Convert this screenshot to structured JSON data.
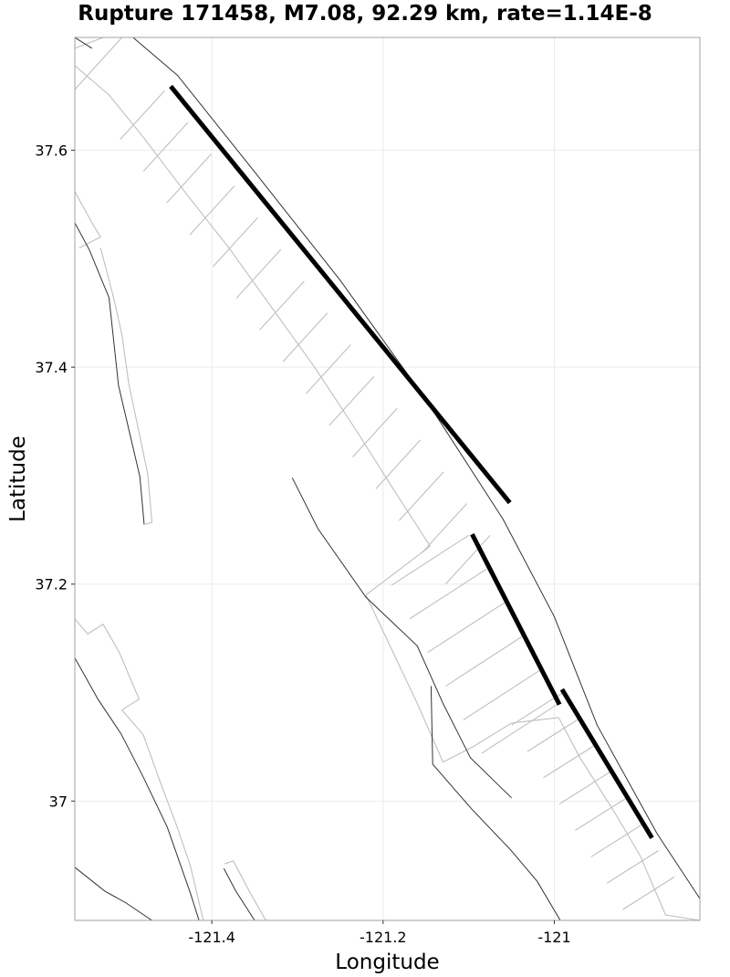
{
  "title": "Rupture 171458, M7.08, 92.29 km, rate=1.14E-8",
  "chart_data": {
    "type": "map",
    "xlabel": "Longitude",
    "ylabel": "Latitude",
    "xlim": [
      -121.56,
      -120.83
    ],
    "ylim": [
      36.89,
      37.704
    ],
    "x_ticks": [
      {
        "value": -121.4,
        "label": "-121.4"
      },
      {
        "value": -121.2,
        "label": "-121.2"
      },
      {
        "value": -121.0,
        "label": "-121"
      }
    ],
    "y_ticks": [
      {
        "value": 37.6,
        "label": "37.6"
      },
      {
        "value": 37.4,
        "label": "37.4"
      },
      {
        "value": 37.2,
        "label": "37.2"
      },
      {
        "value": 37.0,
        "label": "37"
      }
    ],
    "grid": true,
    "colors": {
      "rupture": "#000000",
      "fault_trace": "#333333",
      "fault_outline": "#bfbfbf",
      "grid": "#ebebeb"
    },
    "rupture_segments": [
      [
        [
          -121.448,
          37.659
        ],
        [
          -121.052,
          37.275
        ]
      ],
      [
        [
          -121.096,
          37.246
        ],
        [
          -120.994,
          37.089
        ]
      ],
      [
        [
          -120.991,
          37.103
        ],
        [
          -120.886,
          36.966
        ]
      ]
    ],
    "fault_traces": [
      [
        [
          -121.56,
          37.533
        ],
        [
          -121.543,
          37.508
        ],
        [
          -121.52,
          37.464
        ],
        [
          -121.509,
          37.383
        ],
        [
          -121.484,
          37.299
        ],
        [
          -121.479,
          37.255
        ]
      ],
      [
        [
          -121.306,
          37.298
        ],
        [
          -121.276,
          37.251
        ],
        [
          -121.22,
          37.188
        ],
        [
          -121.16,
          37.143
        ],
        [
          -121.13,
          37.09
        ],
        [
          -121.098,
          37.04
        ],
        [
          -121.05,
          37.003
        ]
      ],
      [
        [
          -121.144,
          37.106
        ],
        [
          -121.142,
          37.034
        ],
        [
          -121.097,
          36.993
        ],
        [
          -121.051,
          36.955
        ],
        [
          -121.02,
          36.926
        ],
        [
          -120.993,
          36.89
        ]
      ],
      [
        [
          -121.56,
          37.132
        ],
        [
          -121.533,
          37.094
        ],
        [
          -121.506,
          37.062
        ],
        [
          -121.48,
          37.022
        ],
        [
          -121.452,
          36.976
        ],
        [
          -121.425,
          36.915
        ],
        [
          -121.415,
          36.89
        ]
      ],
      [
        [
          -121.56,
          36.939
        ],
        [
          -121.525,
          36.917
        ],
        [
          -121.5,
          36.906
        ],
        [
          -121.47,
          36.89
        ]
      ],
      [
        [
          -121.386,
          36.938
        ],
        [
          -121.372,
          36.917
        ],
        [
          -121.35,
          36.89
        ]
      ],
      [
        [
          -121.492,
          37.704
        ],
        [
          -121.44,
          37.669
        ],
        [
          -121.35,
          37.58
        ],
        [
          -121.25,
          37.48
        ],
        [
          -121.15,
          37.37
        ],
        [
          -121.06,
          37.26
        ],
        [
          -121.0,
          37.17
        ],
        [
          -120.95,
          37.07
        ],
        [
          -120.88,
          36.97
        ],
        [
          -120.83,
          36.91
        ]
      ],
      [
        [
          -121.56,
          37.704
        ],
        [
          -121.54,
          37.694
        ]
      ]
    ],
    "fault_outlines": [
      [
        [
          -121.56,
          37.678
        ],
        [
          -121.52,
          37.651
        ],
        [
          -121.48,
          37.612
        ],
        [
          -121.43,
          37.56
        ],
        [
          -121.38,
          37.51
        ],
        [
          -121.33,
          37.455
        ],
        [
          -121.28,
          37.4
        ],
        [
          -121.23,
          37.34
        ],
        [
          -121.19,
          37.29
        ],
        [
          -121.145,
          37.235
        ]
      ],
      [
        [
          -121.56,
          37.694
        ],
        [
          -121.52,
          37.706
        ]
      ],
      [
        [
          -121.52,
          37.706
        ],
        [
          -121.4,
          37.704
        ]
      ],
      [
        [
          -121.56,
          37.656
        ],
        [
          -121.505,
          37.704
        ]
      ],
      [
        [
          -121.145,
          37.235
        ],
        [
          -121.22,
          37.19
        ]
      ],
      [
        [
          -121.22,
          37.19
        ],
        [
          -121.16,
          37.09
        ],
        [
          -121.13,
          37.036
        ],
        [
          -121.095,
          37.05
        ],
        [
          -121.05,
          37.072
        ]
      ],
      [
        [
          -120.995,
          37.077
        ],
        [
          -121.05,
          37.072
        ]
      ],
      [
        [
          -120.995,
          37.077
        ],
        [
          -120.97,
          37.04
        ],
        [
          -120.93,
          36.99
        ],
        [
          -120.9,
          36.95
        ],
        [
          -120.87,
          36.895
        ]
      ],
      [
        [
          -120.83,
          36.89
        ],
        [
          -120.87,
          36.895
        ]
      ],
      [
        [
          -121.56,
          37.562
        ],
        [
          -121.54,
          37.533
        ],
        [
          -121.53,
          37.52
        ],
        [
          -121.555,
          37.51
        ]
      ],
      [
        [
          -121.53,
          37.51
        ],
        [
          -121.515,
          37.465
        ],
        [
          -121.505,
          37.43
        ],
        [
          -121.497,
          37.385
        ],
        [
          -121.475,
          37.302
        ],
        [
          -121.47,
          37.257
        ],
        [
          -121.478,
          37.255
        ]
      ],
      [
        [
          -121.56,
          37.168
        ],
        [
          -121.545,
          37.154
        ],
        [
          -121.527,
          37.163
        ],
        [
          -121.508,
          37.137
        ],
        [
          -121.485,
          37.094
        ],
        [
          -121.505,
          37.084
        ],
        [
          -121.48,
          37.061
        ],
        [
          -121.46,
          37.017
        ],
        [
          -121.44,
          36.975
        ],
        [
          -121.425,
          36.94
        ],
        [
          -121.41,
          36.89
        ]
      ],
      [
        [
          -121.385,
          36.942
        ],
        [
          -121.375,
          36.945
        ],
        [
          -121.355,
          36.915
        ],
        [
          -121.337,
          36.89
        ]
      ]
    ]
  }
}
